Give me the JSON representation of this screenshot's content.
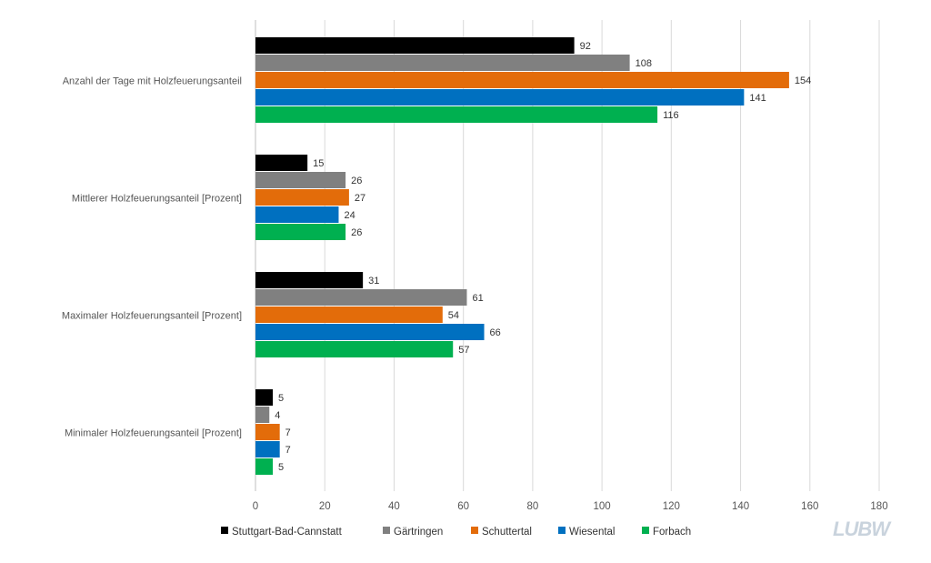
{
  "chart_data": {
    "type": "bar",
    "orientation": "horizontal",
    "title": "",
    "xlabel": "",
    "ylabel": "",
    "xlim": [
      0,
      180
    ],
    "x_ticks": [
      0,
      20,
      40,
      60,
      80,
      100,
      120,
      140,
      160,
      180
    ],
    "grid": true,
    "legend_position": "bottom",
    "categories": [
      "Anzahl der Tage mit Holzfeuerungsanteil",
      "Mittlerer Holzfeuerungsanteil [Prozent]",
      "Maximaler Holzfeuerungsanteil [Prozent]",
      "Minimaler Holzfeuerungsanteil [Prozent]"
    ],
    "series": [
      {
        "name": "Stuttgart-Bad-Cannstatt",
        "color": "#000000",
        "values": [
          92,
          15,
          31,
          5
        ]
      },
      {
        "name": "Gärtringen",
        "color": "#808080",
        "values": [
          108,
          26,
          61,
          4
        ]
      },
      {
        "name": "Schuttertal",
        "color": "#e36c0a",
        "values": [
          154,
          27,
          54,
          7
        ]
      },
      {
        "name": "Wiesental",
        "color": "#0070c0",
        "values": [
          141,
          24,
          66,
          7
        ]
      },
      {
        "name": "Forbach",
        "color": "#00b050",
        "values": [
          116,
          26,
          57,
          5
        ]
      }
    ]
  },
  "logo": {
    "text": "LUBW",
    "icon": "lubw-logo-icon"
  }
}
